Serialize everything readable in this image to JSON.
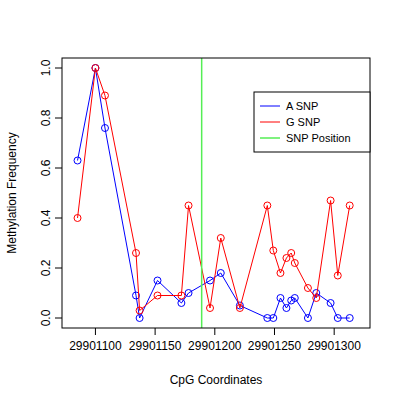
{
  "chart_data": {
    "type": "line",
    "x_label": "CpG Coordinates",
    "y_label": "Methylation Frequency",
    "x": [
      29901085,
      29901100,
      29901108,
      29901134,
      29901137,
      29901152,
      29901172,
      29901178,
      29901196,
      29901205,
      29901221,
      29901244,
      29901249,
      29901255,
      29901260,
      29901264,
      29901267,
      29901278,
      29901285,
      29901297,
      29901303,
      29901313
    ],
    "series": [
      {
        "name": "A SNP",
        "color": "#0000ff",
        "marker": "circle_open",
        "line_style": "solid",
        "values": [
          0.63,
          1.0,
          0.76,
          0.09,
          0.0,
          0.15,
          0.06,
          0.1,
          0.15,
          0.18,
          0.05,
          0.0,
          0.0,
          0.08,
          0.04,
          0.07,
          0.08,
          0.0,
          0.1,
          0.06,
          0.0,
          0.0
        ]
      },
      {
        "name": "G SNP",
        "color": "#ff0000",
        "marker": "circle_open",
        "line_style": "solid",
        "values": [
          0.4,
          1.0,
          0.89,
          0.26,
          0.03,
          0.09,
          0.09,
          0.45,
          0.04,
          0.32,
          0.04,
          0.45,
          0.27,
          0.18,
          0.24,
          0.26,
          0.22,
          0.12,
          0.08,
          0.47,
          0.17,
          0.45
        ]
      }
    ],
    "vlines": [
      {
        "name": "SNP Position",
        "x": 29901189,
        "color": "#55ee55"
      }
    ],
    "xlim": [
      29901072,
      29901330
    ],
    "xticks": [
      29901100,
      29901150,
      29901200,
      29901250,
      29901300
    ],
    "ylim": [
      -0.04,
      1.04
    ],
    "yticks": [
      {
        "value": 0,
        "label": "0.0"
      },
      0.2,
      0.4,
      0.6,
      0.8,
      {
        "value": 1,
        "label": "1.0"
      }
    ],
    "legend": "right",
    "grid": false
  }
}
